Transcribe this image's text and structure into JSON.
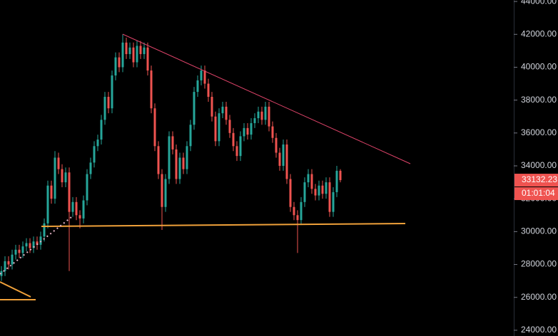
{
  "chart_data": {
    "type": "candlestick",
    "open": [
      27300,
      27600,
      28200,
      28000,
      28600,
      28900,
      28700,
      29100,
      29300,
      29000,
      29400,
      29200,
      29700,
      30500,
      32800,
      32000,
      34500,
      33800,
      33000,
      33600,
      31200,
      31800,
      31000,
      30800,
      31900,
      33500,
      34200,
      35200,
      35600,
      36800,
      38200,
      37500,
      39500,
      40600,
      40000,
      41500,
      40800,
      41200,
      40300,
      41300,
      40800,
      41200,
      39800,
      37500,
      35200,
      33500,
      31500,
      33200,
      35800,
      35000,
      33200,
      34500,
      33800,
      35200,
      36500,
      38500,
      39200,
      39800,
      39000,
      38200,
      37000,
      35500,
      37200,
      37600,
      36800,
      36000,
      35200,
      34600,
      35800,
      36300,
      35900,
      36600,
      36900,
      37300,
      36800,
      37600,
      36400,
      35700,
      34800,
      34000,
      35300,
      33200,
      31500,
      31000,
      30700,
      31800,
      33000,
      33500,
      32600,
      32200,
      32800,
      32300,
      33000,
      31200,
      32400,
      33700
    ],
    "high": [
      27900,
      28500,
      28500,
      28900,
      29200,
      29200,
      29400,
      29600,
      29600,
      29700,
      29700,
      30000,
      30800,
      33100,
      33100,
      34900,
      34800,
      34100,
      33900,
      33900,
      32100,
      32100,
      31300,
      32200,
      33800,
      34500,
      35500,
      35900,
      37100,
      38500,
      38500,
      39800,
      40900,
      40900,
      42000,
      41800,
      41500,
      41500,
      41600,
      41600,
      41500,
      41500,
      40100,
      37800,
      35500,
      33800,
      33500,
      36100,
      36100,
      35300,
      34800,
      34800,
      35500,
      36800,
      38800,
      39500,
      40100,
      40100,
      39300,
      38500,
      37300,
      37500,
      37900,
      37900,
      37100,
      36300,
      35500,
      36100,
      36600,
      36600,
      36900,
      37200,
      37600,
      37600,
      37900,
      37900,
      36700,
      36000,
      35100,
      35600,
      35600,
      33500,
      31800,
      31300,
      32100,
      33300,
      33800,
      33800,
      32900,
      33100,
      33100,
      33300,
      33300,
      32700,
      34000,
      33800
    ],
    "low": [
      27000,
      27300,
      27700,
      27700,
      28300,
      28400,
      28400,
      28800,
      28700,
      28700,
      28900,
      28900,
      29400,
      30200,
      31700,
      31700,
      33500,
      32700,
      32700,
      27600,
      30900,
      30700,
      30200,
      30500,
      31600,
      33200,
      33900,
      34900,
      35300,
      36500,
      37200,
      37200,
      39200,
      39700,
      39700,
      40500,
      40500,
      40000,
      40000,
      40500,
      40500,
      39500,
      37200,
      34900,
      33200,
      30100,
      31200,
      32900,
      34700,
      32900,
      32900,
      33500,
      33500,
      34900,
      36200,
      38200,
      38900,
      38700,
      37900,
      36700,
      35200,
      35200,
      36900,
      36500,
      35700,
      34900,
      34300,
      34300,
      35500,
      35600,
      35600,
      36300,
      36600,
      36500,
      36500,
      36100,
      35400,
      34500,
      33700,
      33700,
      32900,
      31200,
      30700,
      28700,
      30400,
      31500,
      32700,
      32300,
      31900,
      31900,
      32000,
      32000,
      30900,
      30900,
      32100,
      33000
    ],
    "close": [
      27600,
      28200,
      28000,
      28600,
      28900,
      28700,
      29100,
      29300,
      29000,
      29400,
      29200,
      29700,
      30500,
      32800,
      32000,
      34500,
      33800,
      33000,
      33600,
      31200,
      31800,
      31000,
      30800,
      31900,
      33500,
      34200,
      35200,
      35600,
      36800,
      38200,
      37500,
      39500,
      40600,
      40000,
      41500,
      40800,
      41200,
      40300,
      41300,
      40800,
      41200,
      39800,
      37500,
      35200,
      33500,
      31500,
      33200,
      35800,
      35000,
      33200,
      34500,
      33800,
      35200,
      36500,
      38500,
      39200,
      39800,
      39000,
      38200,
      37000,
      35500,
      37200,
      37600,
      36800,
      36000,
      35200,
      34600,
      35800,
      36300,
      35900,
      36600,
      36900,
      37300,
      36800,
      37600,
      36400,
      35700,
      34800,
      34000,
      35300,
      33200,
      31500,
      31000,
      30700,
      31800,
      33000,
      33500,
      32600,
      32200,
      32800,
      32300,
      33000,
      31200,
      32400,
      33700,
      33132.23
    ],
    "up_color": "#26a69a",
    "down_color": "#ef5350",
    "ylim": [
      23650,
      44090
    ],
    "yticks": [
      {
        "value": 24000,
        "label": "24000.00"
      },
      {
        "value": 26000,
        "label": "26000.00"
      },
      {
        "value": 28000,
        "label": "28000.00"
      },
      {
        "value": 30000,
        "label": "30000.00"
      },
      {
        "value": 32000,
        "label": "32000.00"
      },
      {
        "value": 34000,
        "label": "34000.00"
      },
      {
        "value": 36000,
        "label": "36000.00"
      },
      {
        "value": 38000,
        "label": "38000.00"
      },
      {
        "value": 40000,
        "label": "40000.00"
      },
      {
        "value": 42000,
        "label": "42000.00"
      },
      {
        "value": 44000,
        "label": "44000.00"
      }
    ],
    "last_price": 33132.23,
    "countdown": "01:01:04"
  }
}
